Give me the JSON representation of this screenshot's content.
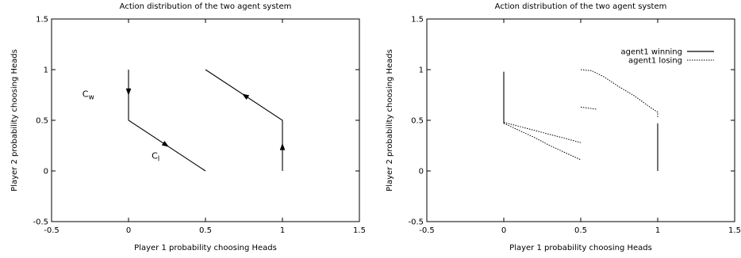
{
  "chart_data": [
    {
      "type": "line",
      "title": "Action distribution of the two agent system",
      "xlabel": "Player 1 probability choosing Heads",
      "ylabel": "Player 2 probability choosing Heads",
      "xlim": [
        -0.5,
        1.5
      ],
      "ylim": [
        -0.5,
        1.5
      ],
      "xticks": [
        "-0.5",
        "0",
        "0.5",
        "1",
        "1.5"
      ],
      "yticks": [
        "-0.5",
        "0",
        "0.5",
        "1",
        "1.5"
      ],
      "grid": false,
      "series": [
        {
          "style": "solid",
          "points": [
            [
              0,
              1
            ],
            [
              0,
              0.5
            ],
            [
              0.5,
              0
            ]
          ]
        },
        {
          "style": "solid",
          "points": [
            [
              1,
              0
            ],
            [
              1,
              0.5
            ],
            [
              0.5,
              1
            ]
          ]
        }
      ],
      "arrows": [
        {
          "from": [
            0,
            0.95
          ],
          "to": [
            0,
            0.75
          ]
        },
        {
          "from": [
            0.14,
            0.36
          ],
          "to": [
            0.26,
            0.24
          ]
        },
        {
          "from": [
            1,
            0.15
          ],
          "to": [
            1,
            0.27
          ]
        },
        {
          "from": [
            0.82,
            0.68
          ],
          "to": [
            0.74,
            0.76
          ]
        }
      ],
      "annotations": [
        {
          "text": "C",
          "sub": "w",
          "x": -0.3,
          "y": 0.73
        },
        {
          "text": "C",
          "sub": "l",
          "x": 0.15,
          "y": 0.12
        }
      ]
    },
    {
      "type": "line",
      "title": "Action distribution of the two agent system",
      "xlabel": "Player 1 probability choosing Heads",
      "ylabel": "Player 2 probability choosing Heads",
      "xlim": [
        -0.5,
        1.5
      ],
      "ylim": [
        -0.5,
        1.5
      ],
      "xticks": [
        "-0.5",
        "0",
        "0.5",
        "1",
        "1.5"
      ],
      "yticks": [
        "-0.5",
        "0",
        "0.5",
        "1",
        "1.5"
      ],
      "grid": false,
      "legend": {
        "position": "top-right",
        "entries": [
          "agent1 winning",
          "agent1 losing"
        ]
      },
      "series": [
        {
          "name": "agent1 winning",
          "style": "solid",
          "segments": [
            [
              [
                0,
                0.47
              ],
              [
                0,
                0.98
              ]
            ],
            [
              [
                1,
                0
              ],
              [
                1,
                0.47
              ]
            ]
          ]
        },
        {
          "name": "agent1 losing",
          "style": "dotted",
          "segments": [
            [
              [
                0,
                0.48
              ],
              [
                0.1,
                0.44
              ],
              [
                0.2,
                0.4
              ],
              [
                0.3,
                0.36
              ],
              [
                0.4,
                0.32
              ],
              [
                0.5,
                0.28
              ]
            ],
            [
              [
                0,
                0.47
              ],
              [
                0.1,
                0.4
              ],
              [
                0.2,
                0.33
              ],
              [
                0.3,
                0.25
              ],
              [
                0.4,
                0.18
              ],
              [
                0.5,
                0.11
              ]
            ],
            [
              [
                0.5,
                1
              ],
              [
                0.57,
                0.99
              ],
              [
                0.65,
                0.93
              ],
              [
                0.75,
                0.83
              ],
              [
                0.85,
                0.74
              ],
              [
                0.95,
                0.63
              ],
              [
                1,
                0.58
              ],
              [
                1,
                0.52
              ]
            ],
            [
              [
                0.5,
                0.63
              ],
              [
                0.6,
                0.61
              ]
            ]
          ]
        }
      ]
    }
  ]
}
